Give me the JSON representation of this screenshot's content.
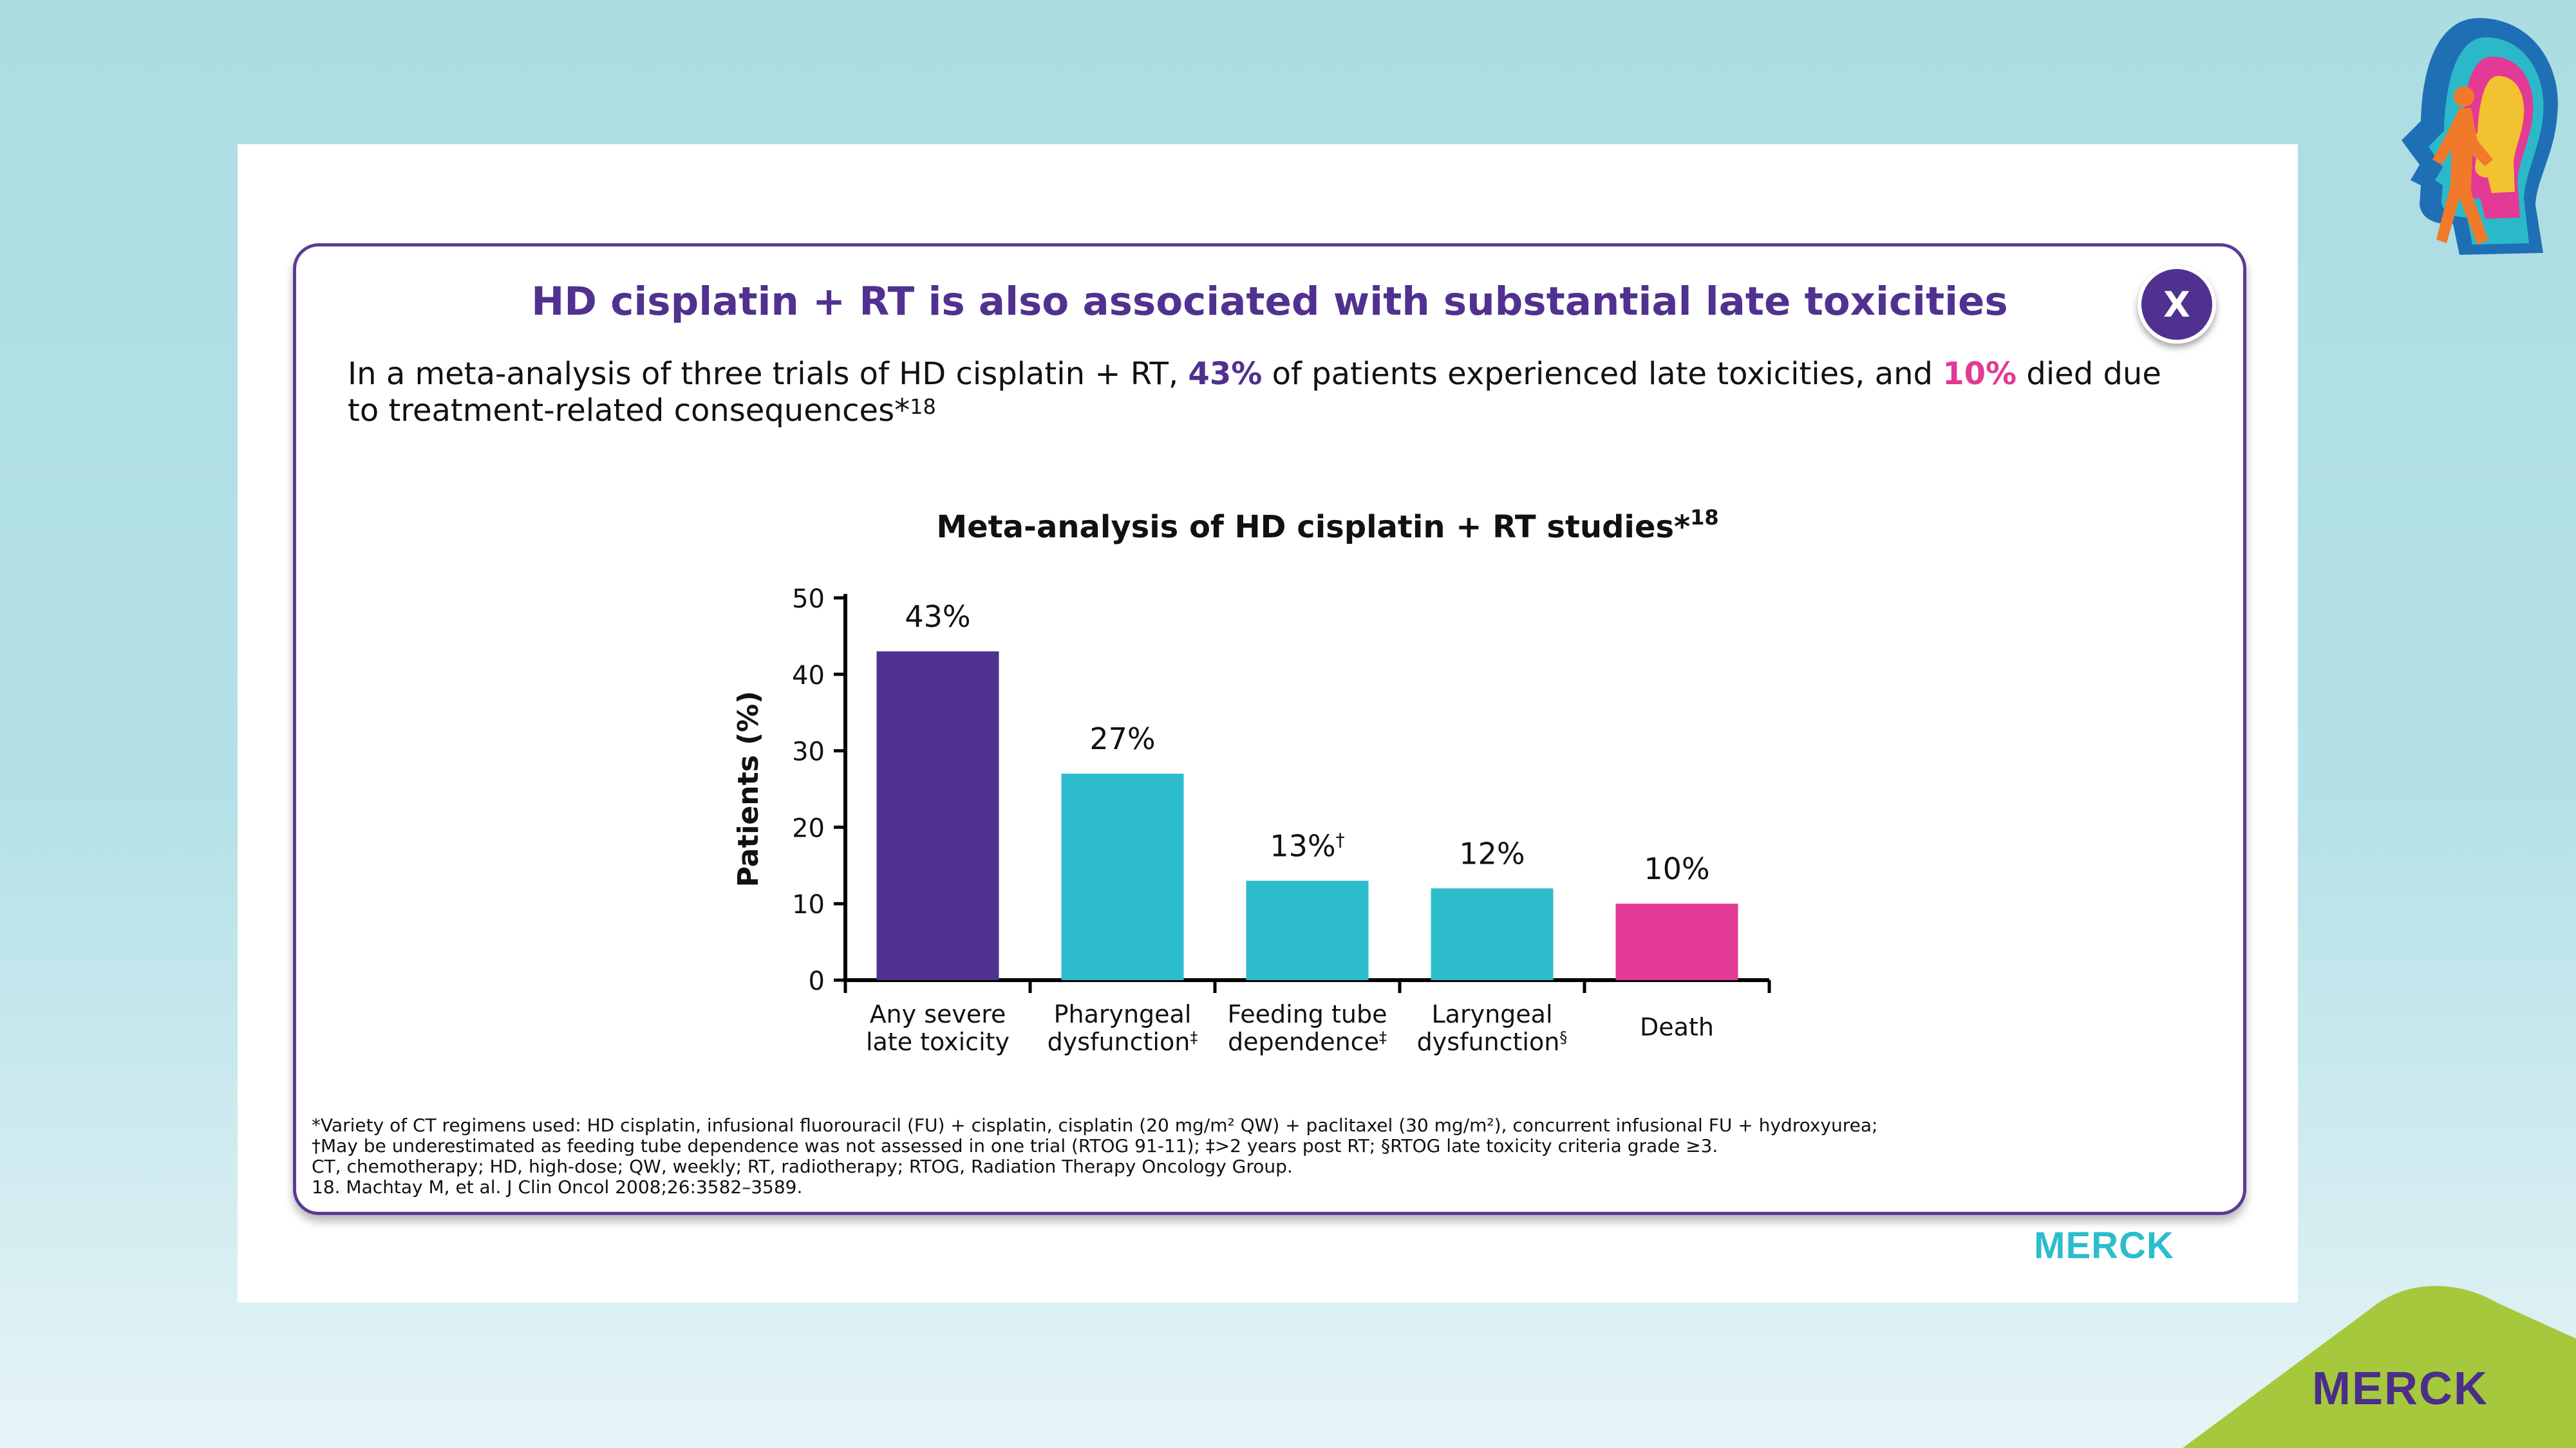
{
  "title": "HD cisplatin + RT is also associated with substantial late toxicities",
  "close_label": "X",
  "intro": {
    "part1": "In a meta-analysis of three trials of HD cisplatin + RT, ",
    "pct1": "43%",
    "part2": " of patients experienced late toxicities, and ",
    "pct2": "10%",
    "part3": " died due to treatment-related consequences*",
    "ref": "18"
  },
  "footnotes": [
    "*Variety of CT regimens used: HD cisplatin, infusional fluorouracil (FU) + cisplatin, cisplatin (20 mg/m² QW) + paclitaxel (30 mg/m²), concurrent infusional FU + hydroxyurea;",
    "†May be underestimated as feeding tube dependence was not assessed in one trial (RTOG 91-11); ‡>2 years post RT; §RTOG late toxicity criteria grade ≥3.",
    "CT, chemotherapy; HD, high-dose; QW, weekly; RT, radiotherapy; RTOG, Radiation Therapy Oncology Group.",
    "18. Machtay M, et al. J Clin Oncol 2008;26:3582–3589."
  ],
  "logo_text": "MERCK",
  "colors": {
    "purple": "#51318f",
    "teal": "#2dbccc",
    "pink": "#e23a95",
    "merck_green": "#a6c83c"
  },
  "chart_data": {
    "type": "bar",
    "title": "Meta-analysis of HD cisplatin + RT studies*",
    "title_ref": "18",
    "ylabel": "Patients (%)",
    "xlabel": "",
    "ylim": [
      0,
      50
    ],
    "yticks": [
      0,
      10,
      20,
      30,
      40,
      50
    ],
    "categories": [
      [
        "Any severe",
        "late toxicity"
      ],
      [
        "Pharyngeal",
        "dysfunction‡"
      ],
      [
        "Feeding tube",
        "dependence‡"
      ],
      [
        "Laryngeal",
        "dysfunction§"
      ],
      [
        "Death"
      ]
    ],
    "values": [
      43,
      27,
      13,
      12,
      10
    ],
    "data_labels": [
      "43%",
      "27%",
      "13%†",
      "12%",
      "10%"
    ],
    "bar_colors": [
      "#51318f",
      "#2dbccc",
      "#2dbccc",
      "#2dbccc",
      "#e23a95"
    ],
    "grid": false,
    "legend": "none"
  }
}
